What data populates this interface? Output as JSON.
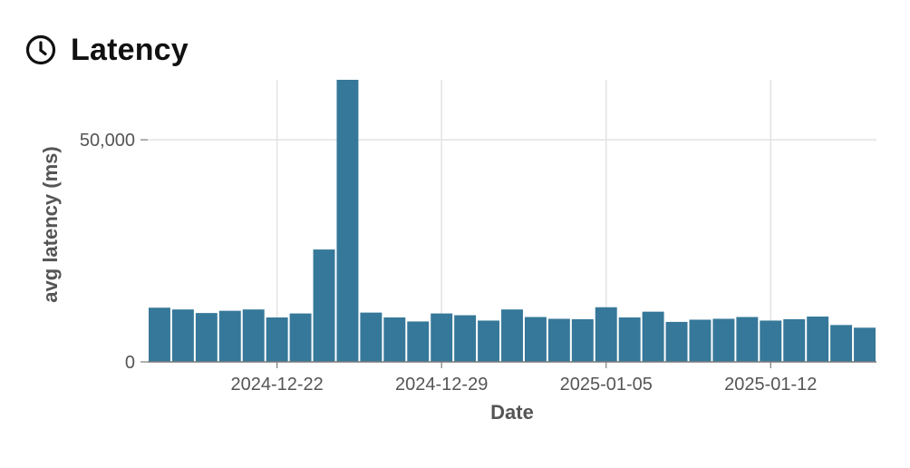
{
  "panel": {
    "title": "Latency",
    "icon": "clock-icon"
  },
  "colors": {
    "bar": "#367899",
    "grid": "#e3e3e3",
    "axis": "#7a7a7a",
    "text": "#555555"
  },
  "chart_data": {
    "type": "bar",
    "title": "Latency",
    "xlabel": "Date",
    "ylabel": "avg latency (ms)",
    "ylim": [
      0,
      63500
    ],
    "y_ticks": [
      0,
      50000
    ],
    "y_tick_labels": [
      "0",
      "50,000"
    ],
    "x_ticks": [
      "2024-12-22",
      "2024-12-29",
      "2025-01-05",
      "2025-01-12"
    ],
    "grid": true,
    "categories": [
      "2024-12-17",
      "2024-12-18",
      "2024-12-19",
      "2024-12-20",
      "2024-12-21",
      "2024-12-22",
      "2024-12-23",
      "2024-12-24",
      "2024-12-25",
      "2024-12-26",
      "2024-12-27",
      "2024-12-28",
      "2024-12-29",
      "2024-12-30",
      "2024-12-31",
      "2025-01-01",
      "2025-01-02",
      "2025-01-03",
      "2025-01-04",
      "2025-01-05",
      "2025-01-06",
      "2025-01-07",
      "2025-01-08",
      "2025-01-09",
      "2025-01-10",
      "2025-01-11",
      "2025-01-12",
      "2025-01-13",
      "2025-01-14",
      "2025-01-15",
      "2025-01-16"
    ],
    "values": [
      12200,
      11800,
      11000,
      11500,
      11800,
      10000,
      10900,
      25300,
      63500,
      11100,
      10000,
      9100,
      10900,
      10500,
      9300,
      11800,
      10100,
      9700,
      9600,
      12300,
      10000,
      11300,
      9000,
      9500,
      9700,
      10100,
      9300,
      9600,
      10200,
      8300,
      7700
    ]
  }
}
